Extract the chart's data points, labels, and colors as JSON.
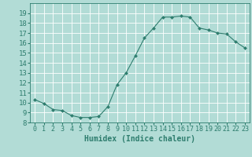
{
  "x": [
    0,
    1,
    2,
    3,
    4,
    5,
    6,
    7,
    8,
    9,
    10,
    11,
    12,
    13,
    14,
    15,
    16,
    17,
    18,
    19,
    20,
    21,
    22,
    23
  ],
  "y": [
    10.3,
    9.9,
    9.3,
    9.2,
    8.7,
    8.5,
    8.5,
    8.6,
    9.6,
    11.8,
    13.0,
    14.7,
    16.5,
    17.5,
    18.6,
    18.6,
    18.7,
    18.6,
    17.5,
    17.3,
    17.0,
    16.9,
    16.1,
    15.5
  ],
  "xlabel": "Humidex (Indice chaleur)",
  "ylim": [
    8,
    20
  ],
  "xlim": [
    -0.5,
    23.5
  ],
  "yticks": [
    8,
    9,
    10,
    11,
    12,
    13,
    14,
    15,
    16,
    17,
    18,
    19
  ],
  "xticks": [
    0,
    1,
    2,
    3,
    4,
    5,
    6,
    7,
    8,
    9,
    10,
    11,
    12,
    13,
    14,
    15,
    16,
    17,
    18,
    19,
    20,
    21,
    22,
    23
  ],
  "line_color": "#2e7d6e",
  "marker": "D",
  "marker_size": 2.0,
  "bg_color": "#b2dcd6",
  "grid_color": "#ffffff",
  "tick_label_color": "#2e7d6e",
  "xlabel_color": "#2e7d6e",
  "xlabel_fontsize": 7,
  "tick_fontsize": 6,
  "ytick_fontsize": 6.5
}
